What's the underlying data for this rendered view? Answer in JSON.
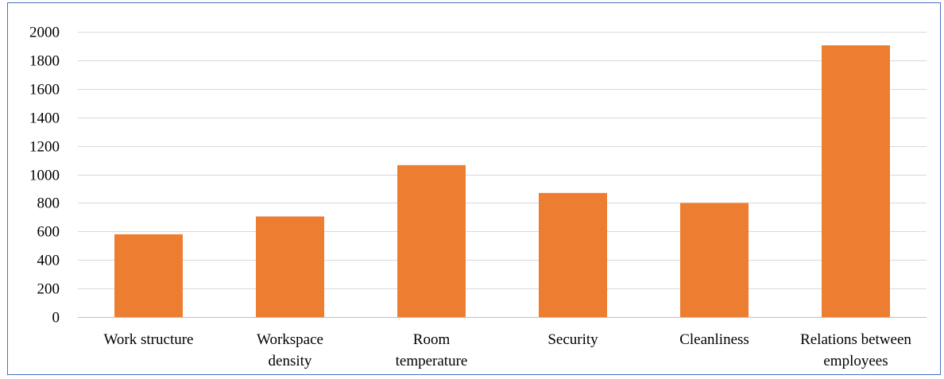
{
  "chart_data": {
    "type": "bar",
    "title": "",
    "xlabel": "",
    "ylabel": "",
    "categories": [
      [
        "Work structure"
      ],
      [
        "Workspace",
        "density"
      ],
      [
        "Room",
        "temperature"
      ],
      [
        "Security"
      ],
      [
        "Cleanliness"
      ],
      [
        "Relations between",
        "employees"
      ]
    ],
    "values": [
      580,
      705,
      1065,
      870,
      800,
      1905
    ],
    "ylim": [
      0,
      2000
    ],
    "yticks": [
      0,
      200,
      400,
      600,
      800,
      1000,
      1200,
      1400,
      1600,
      1800,
      2000
    ],
    "grid": true,
    "legend": "none",
    "colors": {
      "bar": "#ed7d31",
      "grid": "#d9d9d9",
      "axis": "#bfbfbf",
      "border": "#4472c4"
    }
  }
}
